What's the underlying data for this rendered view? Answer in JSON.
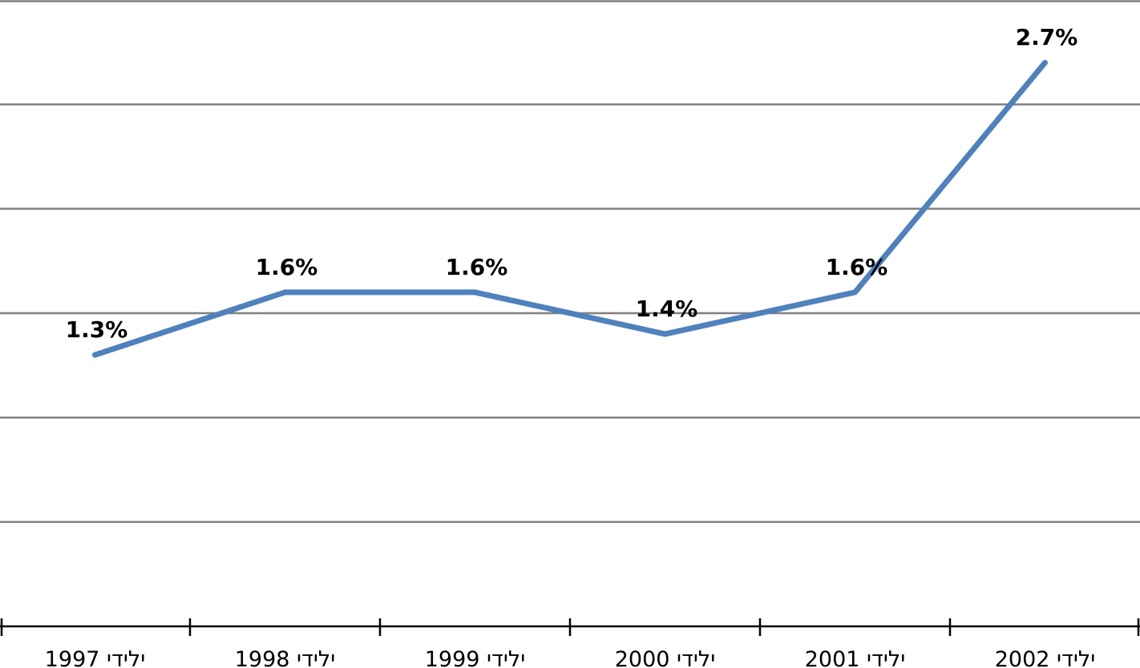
{
  "chart_data": {
    "type": "line",
    "categories": [
      "ילידי 1997",
      "ילידי 1998",
      "ילידי 1999",
      "ילידי 2000",
      "ילידי 2001",
      "ילידי 2002"
    ],
    "series": [
      {
        "values": [
          1.3,
          1.6,
          1.6,
          1.4,
          1.6,
          2.7
        ],
        "data_labels": [
          "1.3%",
          "1.6%",
          "1.6%",
          "1.4%",
          "1.6%",
          "2.7%"
        ],
        "color": "#4f81bd"
      }
    ],
    "ylim": [
      0,
      3.0
    ],
    "ytick_step": 0.5,
    "grid": true,
    "title": "",
    "xlabel": "",
    "ylabel": ""
  }
}
